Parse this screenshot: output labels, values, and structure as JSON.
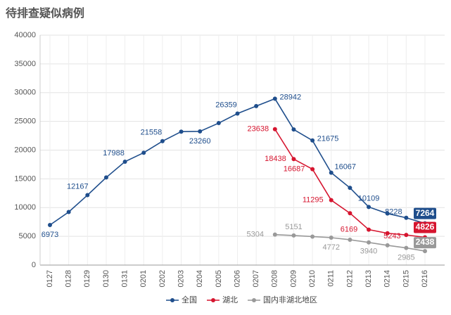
{
  "chart_data": {
    "type": "line",
    "title": "待排查疑似病例",
    "categories": [
      "0127",
      "0128",
      "0129",
      "0130",
      "0131",
      "0201",
      "0202",
      "0203",
      "0204",
      "0205",
      "0206",
      "0207",
      "0208",
      "0209",
      "0210",
      "0211",
      "0212",
      "0213",
      "0214",
      "0215",
      "0216"
    ],
    "series": [
      {
        "name": "全国",
        "color": "#1f4e8c",
        "values": [
          6973,
          9239,
          12167,
          15238,
          17988,
          19544,
          21558,
          23214,
          23260,
          24702,
          26359,
          27657,
          28942,
          23589,
          21675,
          16067,
          13435,
          10109,
          8969,
          8228,
          7264
        ],
        "value_labels": [
          "6973",
          null,
          "12167",
          null,
          "17988",
          null,
          "21558",
          null,
          "23260",
          null,
          "26359",
          null,
          "28942",
          null,
          "21675",
          "16067",
          null,
          "10109",
          null,
          "8228",
          "7264"
        ]
      },
      {
        "name": "湖北",
        "color": "#d6152f",
        "values": [
          null,
          null,
          null,
          null,
          null,
          null,
          null,
          null,
          null,
          null,
          null,
          null,
          23638,
          18438,
          16687,
          11295,
          9028,
          6169,
          5534,
          5243,
          4826
        ],
        "value_labels": [
          null,
          null,
          null,
          null,
          null,
          null,
          null,
          null,
          null,
          null,
          null,
          null,
          "23638",
          "18438",
          "16687",
          "11295",
          null,
          "6169",
          null,
          "5243",
          "4826"
        ]
      },
      {
        "name": "国内非湖北地区",
        "color": "#999999",
        "values": [
          null,
          null,
          null,
          null,
          null,
          null,
          null,
          null,
          null,
          null,
          null,
          null,
          5304,
          5151,
          4958,
          4772,
          4407,
          3940,
          3435,
          2985,
          2438
        ],
        "value_labels": [
          null,
          null,
          null,
          null,
          null,
          null,
          null,
          null,
          null,
          null,
          null,
          null,
          "5304",
          "5151",
          null,
          "4772",
          null,
          "3940",
          null,
          "2985",
          "2438"
        ]
      }
    ],
    "ylim": [
      0,
      40000
    ],
    "yticks": [
      0,
      5000,
      10000,
      15000,
      20000,
      25000,
      30000,
      35000,
      40000
    ],
    "grid": true
  }
}
